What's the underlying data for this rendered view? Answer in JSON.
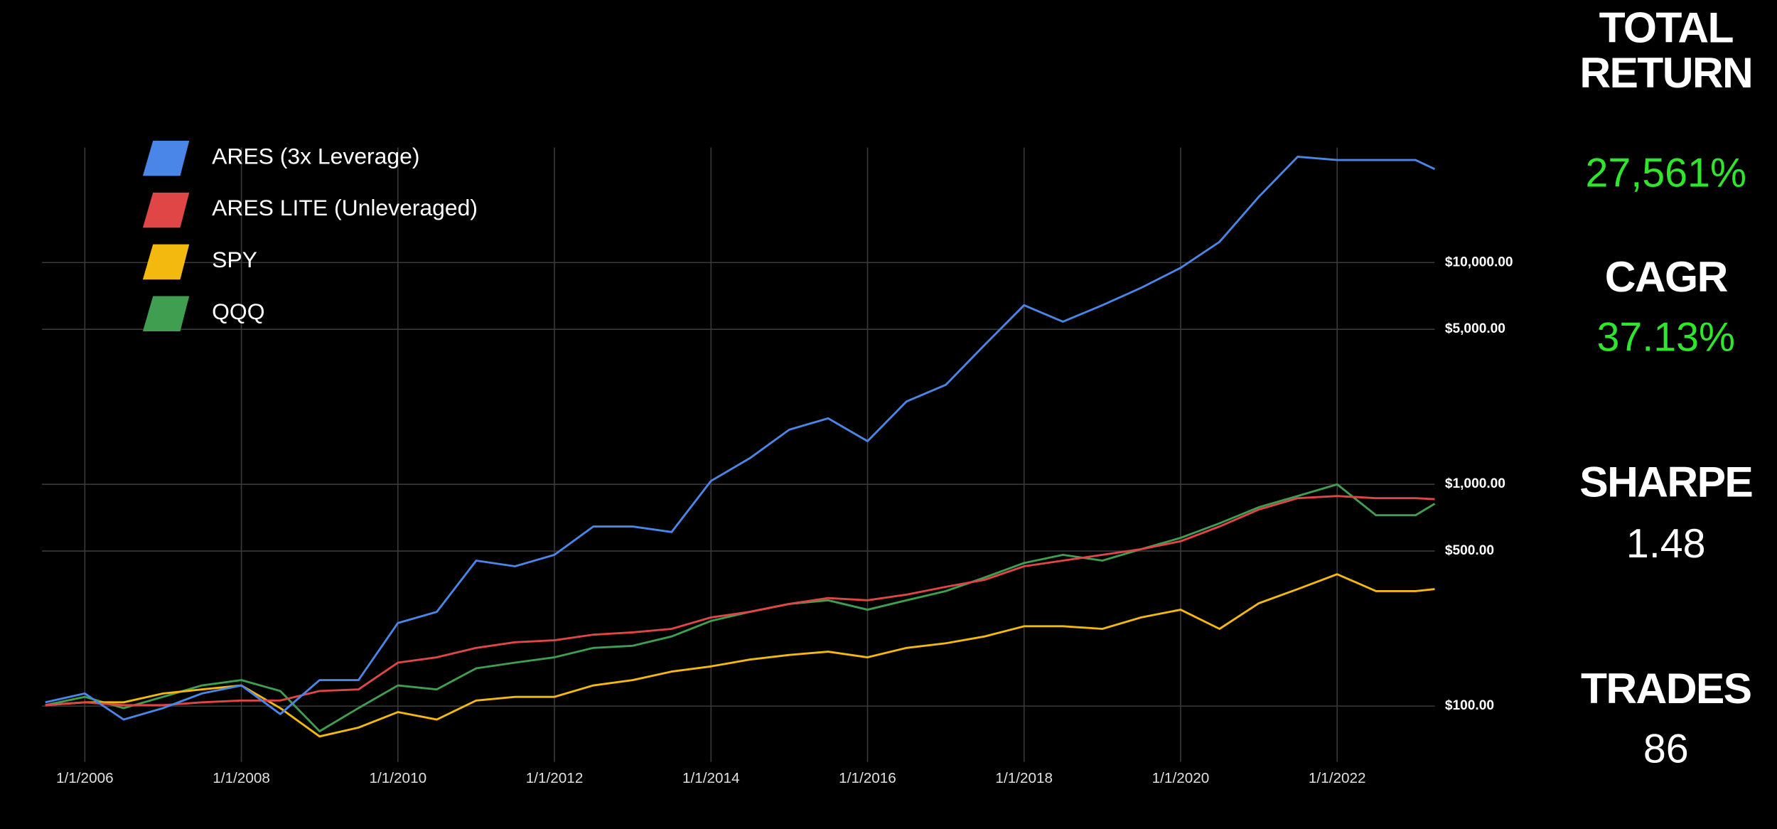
{
  "chart_data": {
    "type": "line",
    "log_scale": true,
    "grid": true,
    "legend": "top-left",
    "x": [
      "7/1/2005",
      "1/1/2006",
      "7/1/2006",
      "1/1/2007",
      "7/1/2007",
      "1/1/2008",
      "7/1/2008",
      "1/1/2009",
      "7/1/2009",
      "1/1/2010",
      "7/1/2010",
      "1/1/2011",
      "7/1/2011",
      "1/1/2012",
      "7/1/2012",
      "1/1/2013",
      "7/1/2013",
      "1/1/2014",
      "7/1/2014",
      "1/1/2015",
      "7/1/2015",
      "1/1/2016",
      "7/1/2016",
      "1/1/2017",
      "7/1/2017",
      "1/1/2018",
      "7/1/2018",
      "1/1/2019",
      "7/1/2019",
      "1/1/2020",
      "7/1/2020",
      "1/1/2021",
      "7/1/2021",
      "1/1/2022",
      "7/1/2022",
      "1/1/2023",
      "4/1/2023"
    ],
    "series": [
      {
        "name": "ARES (3x Leverage)",
        "color": "#4a86e8",
        "values": [
          104,
          114,
          87,
          98,
          114,
          124,
          92,
          131,
          131,
          237,
          266,
          453,
          427,
          481,
          645,
          645,
          609,
          1036,
          1311,
          1763,
          1984,
          1566,
          2364,
          2811,
          4250,
          6420,
          5410,
          6420,
          7700,
          9470,
          12400,
          19800,
          30000,
          29000,
          29000,
          29000,
          26400
        ]
      },
      {
        "name": "ARES LITE (Unleveraged)",
        "color": "#e04646",
        "values": [
          101,
          104,
          101,
          101,
          104,
          106,
          106,
          117,
          119,
          157,
          166,
          183,
          194,
          198,
          210,
          215,
          223,
          251,
          266,
          289,
          307,
          300,
          318,
          345,
          371,
          427,
          453,
          481,
          510,
          554,
          645,
          770,
          866,
          886,
          866,
          866,
          857
        ]
      },
      {
        "name": "SPY",
        "color": "#f4b90f",
        "values": [
          101,
          104,
          104,
          114,
          119,
          124,
          98,
          73,
          80,
          94,
          87,
          106,
          110,
          110,
          124,
          131,
          143,
          151,
          162,
          170,
          176,
          166,
          183,
          192,
          206,
          229,
          229,
          223,
          251,
          272,
          223,
          291,
          337,
          393,
          330,
          330,
          337
        ]
      },
      {
        "name": "QQQ",
        "color": "#3f9e50",
        "values": [
          101,
          110,
          98,
          110,
          124,
          131,
          117,
          77,
          98,
          124,
          119,
          148,
          157,
          166,
          183,
          187,
          206,
          242,
          266,
          289,
          300,
          272,
          300,
          330,
          380,
          442,
          481,
          453,
          510,
          574,
          667,
          788,
          886,
          1000,
          725,
          725,
          818
        ]
      }
    ],
    "xlim": [
      "6/15/2005",
      "4/1/2023"
    ],
    "xticks": [
      "1/1/2006",
      "1/1/2008",
      "1/1/2010",
      "1/1/2012",
      "1/1/2014",
      "1/1/2016",
      "1/1/2018",
      "1/1/2020",
      "1/1/2022"
    ],
    "ylim": [
      56,
      33000
    ],
    "yticks": [
      {
        "value": 100,
        "label": "$100.00"
      },
      {
        "value": 500,
        "label": "$500.00"
      },
      {
        "value": 1000,
        "label": "$1,000.00"
      },
      {
        "value": 5000,
        "label": "$5,000.00"
      },
      {
        "value": 10000,
        "label": "$10,000.00"
      }
    ]
  },
  "stats": [
    {
      "label": [
        "TOTAL",
        "RETURN"
      ],
      "value": "27,561%",
      "color": "#2ee62a"
    },
    {
      "label": [
        "CAGR"
      ],
      "value": "37.13%",
      "color": "#2ee62a"
    },
    {
      "label": [
        "SHARPE"
      ],
      "value": "1.48",
      "color": "#ffffff"
    },
    {
      "label": [
        "TRADES"
      ],
      "value": "86",
      "color": "#ffffff"
    }
  ]
}
